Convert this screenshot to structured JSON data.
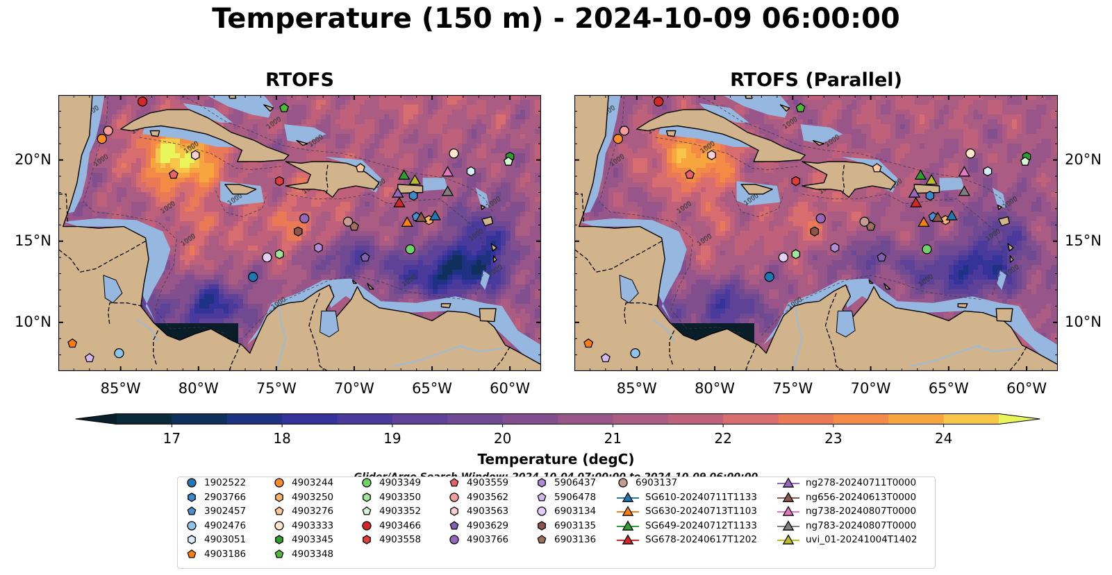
{
  "title": "Temperature (150 m) - 2024-10-09 06:00:00",
  "panels": [
    {
      "title": "RTOFS",
      "variant": "original"
    },
    {
      "title": "RTOFS (Parallel)",
      "variant": "parallel"
    }
  ],
  "lat_ticks": [
    {
      "value": 20,
      "label": "20°N"
    },
    {
      "value": 15,
      "label": "15°N"
    },
    {
      "value": 10,
      "label": "10°N"
    }
  ],
  "lon_ticks": [
    {
      "value": -85,
      "label": "85°W"
    },
    {
      "value": -80,
      "label": "80°W"
    },
    {
      "value": -75,
      "label": "75°W"
    },
    {
      "value": -70,
      "label": "70°W"
    },
    {
      "value": -65,
      "label": "65°W"
    },
    {
      "value": -60,
      "label": "60°W"
    }
  ],
  "map_extent": {
    "lon": [
      -89,
      -58
    ],
    "lat": [
      7,
      24
    ]
  },
  "colorbar": {
    "label": "Temperature (degC)",
    "min": 16.5,
    "max": 24.5,
    "ticks": [
      17,
      18,
      19,
      20,
      21,
      22,
      23,
      24
    ],
    "tick_labels": [
      "17",
      "18",
      "19",
      "20",
      "21",
      "22",
      "23",
      "24"
    ],
    "colors": [
      "#0b2b3a",
      "#10305c",
      "#1d3282",
      "#33339a",
      "#4a3a9c",
      "#5d4297",
      "#6f4a93",
      "#824f8e",
      "#97558a",
      "#ab5c83",
      "#c0617b",
      "#d76d6e",
      "#ea7a55",
      "#f38a45",
      "#f7a63f",
      "#f7c648"
    ],
    "extend_low_color": "#0a1e2a",
    "extend_high_color": "#e9f65b"
  },
  "colors": {
    "land": "#d2b48c",
    "shelf": "#96b7df",
    "deep_cold": "#071e2b",
    "contour_label": "1000"
  },
  "search_window": "Glider/Argo Search Window: 2024-10-04 07:00:00 to 2024-10-09 06:00:00",
  "legend": [
    [
      {
        "label": "1902522",
        "shape": "circle",
        "color": "#1f77b4"
      },
      {
        "label": "2903766",
        "shape": "hexagon",
        "color": "#3b89c9"
      },
      {
        "label": "3902457",
        "shape": "pentagon",
        "color": "#4a90d0"
      },
      {
        "label": "4902476",
        "shape": "circle",
        "color": "#8ec3ea"
      },
      {
        "label": "4903051",
        "shape": "hexagon",
        "color": "#d6ecfb"
      },
      {
        "label": "4903186",
        "shape": "pentagon",
        "color": "#ff7f0e"
      }
    ],
    [
      {
        "label": "4903244",
        "shape": "circle",
        "color": "#ff8c2b"
      },
      {
        "label": "4903250",
        "shape": "hexagon",
        "color": "#ffb26b"
      },
      {
        "label": "4903276",
        "shape": "pentagon",
        "color": "#ffc999"
      },
      {
        "label": "4903333",
        "shape": "circle",
        "color": "#ffe6cc"
      },
      {
        "label": "4903345",
        "shape": "hexagon",
        "color": "#2ca02c"
      },
      {
        "label": "4903348",
        "shape": "pentagon",
        "color": "#4cbb3a"
      }
    ],
    [
      {
        "label": "4903349",
        "shape": "circle",
        "color": "#6fd36a"
      },
      {
        "label": "4903350",
        "shape": "hexagon",
        "color": "#9de69a"
      },
      {
        "label": "4903352",
        "shape": "pentagon",
        "color": "#d6f5d2"
      },
      {
        "label": "4903466",
        "shape": "circle",
        "color": "#d62728"
      },
      {
        "label": "4903558",
        "shape": "hexagon",
        "color": "#e03b3b"
      }
    ],
    [
      {
        "label": "4903559",
        "shape": "pentagon",
        "color": "#e8626b"
      },
      {
        "label": "4903562",
        "shape": "circle",
        "color": "#f29c9c"
      },
      {
        "label": "4903563",
        "shape": "hexagon",
        "color": "#fbd0d0"
      },
      {
        "label": "4903629",
        "shape": "pentagon",
        "color": "#8060b0"
      },
      {
        "label": "4903766",
        "shape": "circle",
        "color": "#9467bd"
      }
    ],
    [
      {
        "label": "5906437",
        "shape": "hexagon",
        "color": "#b08bd8"
      },
      {
        "label": "5906478",
        "shape": "pentagon",
        "color": "#d3b8f0"
      },
      {
        "label": "6903134",
        "shape": "circle",
        "color": "#e6cdf8"
      },
      {
        "label": "6903135",
        "shape": "hexagon",
        "color": "#8c564b"
      },
      {
        "label": "6903136",
        "shape": "pentagon",
        "color": "#a0705f"
      }
    ],
    [
      {
        "label": "6903137",
        "shape": "circle",
        "color": "#c49c94"
      },
      {
        "label": "SG610-20240711T1133",
        "shape": "triangle",
        "color": "#1f77b4"
      },
      {
        "label": "SG630-20240713T1103",
        "shape": "triangle",
        "color": "#ff7f0e"
      },
      {
        "label": "SG649-20240712T1133",
        "shape": "triangle",
        "color": "#2ca02c"
      },
      {
        "label": "SG678-20240617T1202",
        "shape": "triangle",
        "color": "#d62728"
      }
    ],
    [
      {
        "label": "ng278-20240711T0000",
        "shape": "triangle",
        "color": "#9467bd"
      },
      {
        "label": "ng656-20240613T0000",
        "shape": "triangle",
        "color": "#8c564b"
      },
      {
        "label": "ng738-20240807T0000",
        "shape": "triangle",
        "color": "#e377c2"
      },
      {
        "label": "ng783-20240807T0000",
        "shape": "triangle",
        "color": "#7f7f7f"
      },
      {
        "label": "uvi_01-20241004T1402",
        "shape": "triangle",
        "color": "#bcbd22"
      }
    ]
  ],
  "markers": [
    {
      "id": "1902522",
      "lon": -76.5,
      "lat": 12.8
    },
    {
      "id": "2903766",
      "lon": -66.2,
      "lat": 17.8
    },
    {
      "id": "3902457",
      "lon": -66.0,
      "lat": 16.5
    },
    {
      "id": "4902476",
      "lon": -85.1,
      "lat": 8.1
    },
    {
      "id": "4903051",
      "lon": -62.5,
      "lat": 19.3
    },
    {
      "id": "4903186",
      "lon": -88.1,
      "lat": 8.7
    },
    {
      "id": "4903244",
      "lon": -86.2,
      "lat": 21.3
    },
    {
      "id": "4903250",
      "lon": -65.2,
      "lat": 16.3
    },
    {
      "id": "4903276",
      "lon": -69.6,
      "lat": 19.5
    },
    {
      "id": "4903333",
      "lon": -63.6,
      "lat": 20.4
    },
    {
      "id": "4903345",
      "lon": -60.0,
      "lat": 20.2
    },
    {
      "id": "4903348",
      "lon": -74.5,
      "lat": 23.2
    },
    {
      "id": "4903349",
      "lon": -66.4,
      "lat": 14.5
    },
    {
      "id": "4903350",
      "lon": -74.8,
      "lat": 14.2
    },
    {
      "id": "4903352",
      "lon": -60.1,
      "lat": 19.9
    },
    {
      "id": "4903466",
      "lon": -83.6,
      "lat": 23.6
    },
    {
      "id": "4903558",
      "lon": -74.8,
      "lat": 18.7
    },
    {
      "id": "4903559",
      "lon": -81.6,
      "lat": 19.1
    },
    {
      "id": "4903562",
      "lon": -85.8,
      "lat": 21.8
    },
    {
      "id": "4903563",
      "lon": -80.2,
      "lat": 20.3
    },
    {
      "id": "4903629",
      "lon": -69.3,
      "lat": 14.0
    },
    {
      "id": "4903766",
      "lon": -73.2,
      "lat": 16.4
    },
    {
      "id": "5906437",
      "lon": -72.3,
      "lat": 14.6
    },
    {
      "id": "5906478",
      "lon": -87.0,
      "lat": 7.8
    },
    {
      "id": "6903134",
      "lon": -75.6,
      "lat": 14.0
    },
    {
      "id": "6903135",
      "lon": -73.6,
      "lat": 15.6
    },
    {
      "id": "6903136",
      "lon": -70.0,
      "lat": 15.9
    },
    {
      "id": "6903137",
      "lon": -70.4,
      "lat": 16.2
    },
    {
      "id": "SG610-20240711T1133",
      "lon": -64.8,
      "lat": 16.5
    },
    {
      "id": "SG630-20240713T1103",
      "lon": -66.6,
      "lat": 16.1
    },
    {
      "id": "SG649-20240712T1133",
      "lon": -66.8,
      "lat": 19.0
    },
    {
      "id": "SG678-20240617T1202",
      "lon": -67.1,
      "lat": 17.3
    },
    {
      "id": "ng278-20240711T0000",
      "lon": -67.2,
      "lat": 17.9
    },
    {
      "id": "ng656-20240613T0000",
      "lon": -65.7,
      "lat": 16.4
    },
    {
      "id": "ng738-20240807T0000",
      "lon": -64.0,
      "lat": 19.2
    },
    {
      "id": "ng783-20240807T0000",
      "lon": -64.0,
      "lat": 18.0
    },
    {
      "id": "uvi_01-20241004T1402",
      "lon": -66.1,
      "lat": 18.7
    }
  ]
}
